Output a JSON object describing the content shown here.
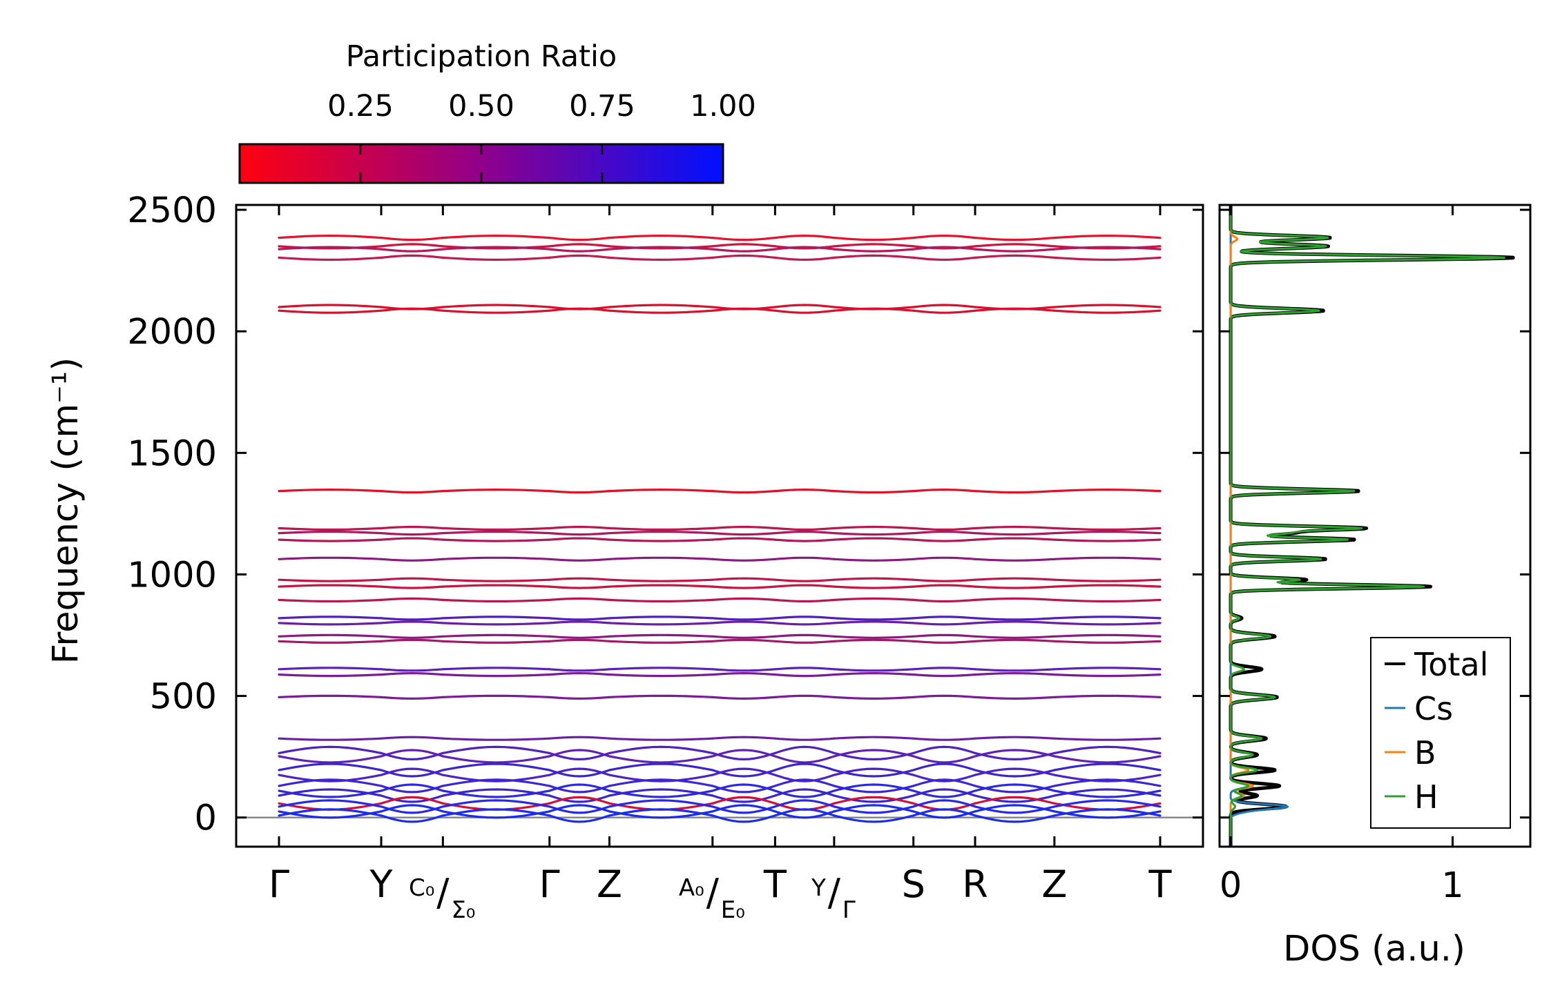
{
  "chart_data": [
    {
      "type": "line",
      "subtype": "phonon-band-structure",
      "ylabel": "Frequency (cm⁻¹)",
      "yticks": [
        "0",
        "500",
        "1000",
        "1500",
        "2000",
        "2500"
      ],
      "ylim": [
        -120,
        2520
      ],
      "colorbar": {
        "title": "Participation Ratio",
        "tick_labels": [
          "0.25",
          "0.50",
          "0.75",
          "1.00"
        ],
        "tick_values": [
          0.25,
          0.5,
          0.75,
          1.0
        ],
        "range": [
          0.0,
          1.0
        ],
        "colors": {
          "low": "#ff0000",
          "mid": "#a0005a",
          "high": "#0000ff"
        }
      },
      "kpath": {
        "labels": [
          {
            "main": "Γ"
          },
          {
            "main": "Y"
          },
          {
            "pre": "C₀",
            "main": "/",
            "sub": "Σ₀"
          },
          {
            "main": "Γ"
          },
          {
            "main": "Z"
          },
          {
            "pre": "A₀",
            "main": "/",
            "sub": "E₀"
          },
          {
            "main": "T"
          },
          {
            "pre": "Y",
            "main": "/",
            "sub": "Γ"
          },
          {
            "main": "S"
          },
          {
            "main": "R"
          },
          {
            "main": "Z"
          },
          {
            "main": "T"
          }
        ],
        "positions": [
          0.0,
          0.116,
          0.186,
          0.307,
          0.375,
          0.492,
          0.563,
          0.63,
          0.72,
          0.79,
          0.88,
          1.0
        ]
      },
      "bands": [
        {
          "name": "band-2380",
          "freq": 2385,
          "color": "#e8102a"
        },
        {
          "name": "band-2350",
          "freq": 2350,
          "color": "#cc1440"
        },
        {
          "name": "band-2340",
          "freq": 2338,
          "color": "#b01860"
        },
        {
          "name": "band-2305",
          "freq": 2303,
          "color": "#c01a50"
        },
        {
          "name": "band-2100",
          "freq": 2100,
          "color": "#d8102e"
        },
        {
          "name": "band-2085",
          "freq": 2085,
          "color": "#d8102e"
        },
        {
          "name": "band-1345",
          "freq": 1343,
          "color": "#e0102a"
        },
        {
          "name": "band-1190",
          "freq": 1190,
          "color": "#b81850"
        },
        {
          "name": "band-1170",
          "freq": 1170,
          "color": "#a81a60"
        },
        {
          "name": "band-1145",
          "freq": 1143,
          "color": "#b01858"
        },
        {
          "name": "band-1065",
          "freq": 1063,
          "color": "#8a1a80"
        },
        {
          "name": "band-980",
          "freq": 978,
          "color": "#c01448"
        },
        {
          "name": "band-950",
          "freq": 950,
          "color": "#c81440"
        },
        {
          "name": "band-900",
          "freq": 895,
          "color": "#b81650"
        },
        {
          "name": "band-820",
          "freq": 820,
          "color": "#5020b8"
        },
        {
          "name": "band-800",
          "freq": 800,
          "color": "#6a1ea8"
        },
        {
          "name": "band-745",
          "freq": 745,
          "color": "#8a1a80"
        },
        {
          "name": "band-725",
          "freq": 725,
          "color": "#a01868"
        },
        {
          "name": "band-610",
          "freq": 610,
          "color": "#5a20b8"
        },
        {
          "name": "band-590",
          "freq": 588,
          "color": "#7a1c98"
        },
        {
          "name": "band-495",
          "freq": 495,
          "color": "#7a1c98"
        },
        {
          "name": "band-325",
          "freq": 325,
          "color": "#6a1ea8"
        },
        {
          "name": "band-265",
          "freq": 265,
          "color": "#5020c0"
        },
        {
          "name": "band-255",
          "freq": 252,
          "color": "#6020b0"
        },
        {
          "name": "band-195",
          "freq": 195,
          "color": "#3a24d0"
        },
        {
          "name": "band-175",
          "freq": 175,
          "color": "#4a22c8"
        },
        {
          "name": "band-130",
          "freq": 130,
          "color": "#3a26d8"
        },
        {
          "name": "band-110",
          "freq": 110,
          "color": "#2a28e0"
        },
        {
          "name": "band-90",
          "freq": 90,
          "color": "#3a24d0"
        },
        {
          "name": "band-60",
          "freq": 58,
          "color": "#d0103a"
        },
        {
          "name": "band-45",
          "freq": 45,
          "color": "#2a28e8"
        },
        {
          "name": "band-25",
          "freq": 25,
          "color": "#1a2aee"
        },
        {
          "name": "band-10",
          "freq": 8,
          "color": "#1a2cf0"
        }
      ]
    },
    {
      "type": "line",
      "subtype": "density-of-states",
      "xlabel": "DOS (a.u.)",
      "xticks": [
        "0",
        "1"
      ],
      "xlim": [
        -0.05,
        1.35
      ],
      "legend": {
        "position": "lower-right",
        "entries": [
          {
            "label": "Total",
            "color": "#000000"
          },
          {
            "label": "Cs",
            "color": "#1f77b4"
          },
          {
            "label": "B",
            "color": "#ff7f0e"
          },
          {
            "label": "H",
            "color": "#2ca02c"
          }
        ]
      },
      "peaks": {
        "Total": [
          [
            2385,
            0.45
          ],
          [
            2350,
            0.44
          ],
          [
            2303,
            1.28
          ],
          [
            2085,
            0.42
          ],
          [
            1343,
            0.58
          ],
          [
            1190,
            0.6
          ],
          [
            1170,
            0.26
          ],
          [
            1143,
            0.56
          ],
          [
            1063,
            0.43
          ],
          [
            978,
            0.34
          ],
          [
            950,
            0.9
          ],
          [
            820,
            0.05
          ],
          [
            745,
            0.2
          ],
          [
            610,
            0.14
          ],
          [
            495,
            0.21
          ],
          [
            325,
            0.16
          ],
          [
            258,
            0.12
          ],
          [
            195,
            0.2
          ],
          [
            130,
            0.22
          ],
          [
            90,
            0.12
          ],
          [
            45,
            0.25
          ]
        ],
        "Cs": [
          [
            45,
            0.25
          ],
          [
            25,
            0.05
          ],
          [
            130,
            0.08
          ]
        ],
        "B": [
          [
            610,
            0.06
          ],
          [
            195,
            0.08
          ],
          [
            130,
            0.1
          ],
          [
            90,
            0.06
          ],
          [
            2380,
            0.03
          ]
        ],
        "H": [
          [
            2385,
            0.44
          ],
          [
            2350,
            0.43
          ],
          [
            2303,
            1.24
          ],
          [
            2085,
            0.4
          ],
          [
            1343,
            0.56
          ],
          [
            1190,
            0.58
          ],
          [
            1170,
            0.24
          ],
          [
            1143,
            0.53
          ],
          [
            1063,
            0.41
          ],
          [
            978,
            0.31
          ],
          [
            950,
            0.87
          ],
          [
            820,
            0.04
          ],
          [
            745,
            0.18
          ],
          [
            610,
            0.06
          ],
          [
            495,
            0.2
          ],
          [
            325,
            0.14
          ],
          [
            258,
            0.1
          ],
          [
            195,
            0.12
          ],
          [
            130,
            0.08
          ],
          [
            90,
            0.05
          ],
          [
            45,
            0.02
          ]
        ]
      }
    }
  ]
}
